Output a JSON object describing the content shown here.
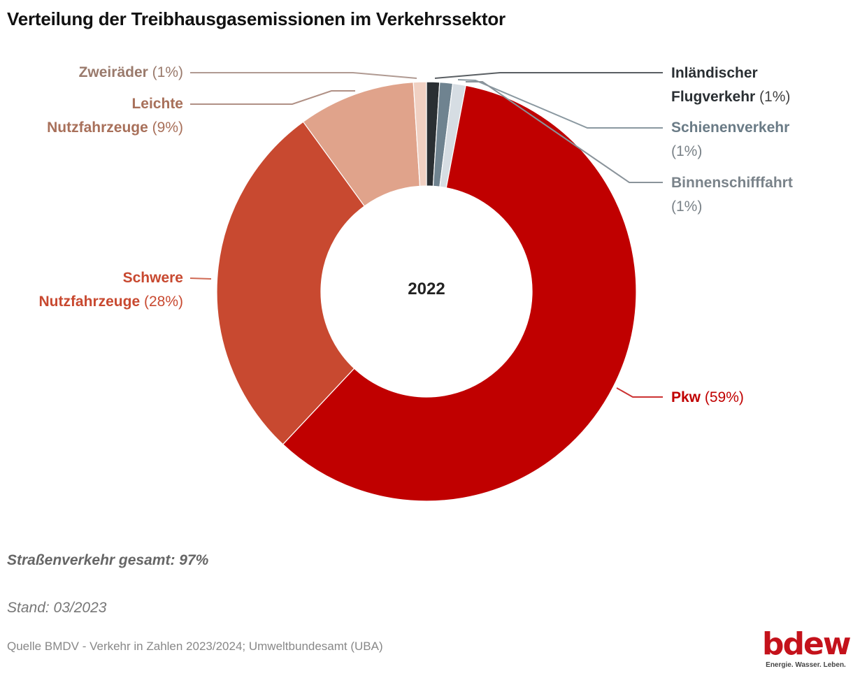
{
  "title": "Verteilung der Treibhausgasemissionen im Verkehrssektor",
  "chart_data": {
    "type": "pie",
    "variant": "donut",
    "title": "Verteilung der Treibhausgasemissionen im Verkehrssektor",
    "center_label": "2022",
    "start": "top",
    "direction": "clockwise",
    "slices": [
      {
        "key": "flug",
        "label_bold": "Inländischer Flugverkehr",
        "label_lines": [
          "Inländischer",
          "Flugverkehr"
        ],
        "pct_text": "(1%)",
        "value": 1,
        "color": "#2a2f33",
        "text_color": "#2a2f33",
        "line_color": "#5a5f63",
        "side": "right"
      },
      {
        "key": "schiene",
        "label_bold": "Schienenverkehr",
        "label_lines": [
          "Schienenverkehr"
        ],
        "pct_text": "(1%)",
        "value": 1,
        "color": "#6f8390",
        "text_color": "#6a7b86",
        "line_color": "#8a98a0",
        "side": "right"
      },
      {
        "key": "binnen",
        "label_bold": "Binnenschifffahrt",
        "label_lines": [
          "Binnenschifffahrt"
        ],
        "pct_text": "(1%)",
        "value": 1,
        "color": "#d6dde3",
        "text_color": "#7a838a",
        "line_color": "#8a939a",
        "side": "right"
      },
      {
        "key": "pkw",
        "label_bold": "Pkw",
        "label_lines": [
          "Pkw"
        ],
        "pct_text": "(59%)",
        "value": 59,
        "color": "#c00000",
        "text_color": "#c00000",
        "line_color": "#cc3333",
        "side": "right"
      },
      {
        "key": "schwer",
        "label_bold": "Schwere Nutzfahrzeuge",
        "label_lines": [
          "Schwere",
          "Nutzfahrzeuge"
        ],
        "pct_text": "(28%)",
        "value": 28,
        "color": "#c84930",
        "text_color": "#c84930",
        "line_color": "#d06a55",
        "side": "left"
      },
      {
        "key": "leicht",
        "label_bold": "Leichte Nutzfahrzeuge",
        "label_lines": [
          "Leichte",
          "Nutzfahrzeuge"
        ],
        "pct_text": "(9%)",
        "value": 9,
        "color": "#e0a38b",
        "text_color": "#a8705a",
        "line_color": "#b09085",
        "side": "left"
      },
      {
        "key": "zwei",
        "label_bold": "Zweiräder",
        "label_lines": [
          "Zweiräder"
        ],
        "pct_text": "(1%)",
        "value": 1,
        "color": "#f0d0c2",
        "text_color": "#9a7a6c",
        "line_color": "#b09a92",
        "side": "left"
      }
    ]
  },
  "footer": {
    "road_total": "Straßenverkehr gesamt: 97%",
    "stand": "Stand: 03/2023",
    "source": "Quelle BMDV - Verkehr in Zahlen 2023/2024; Umweltbundesamt (UBA)"
  },
  "logo": {
    "word": "bdew",
    "tagline": "Energie. Wasser. Leben."
  }
}
